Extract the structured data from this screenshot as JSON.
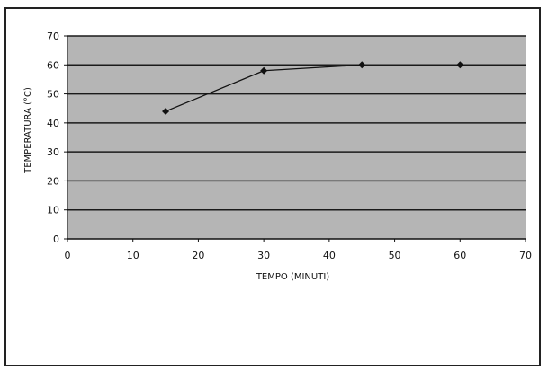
{
  "chart_data": {
    "type": "line",
    "xlabel": "TEMPO (MINUTI)",
    "ylabel": "TEMPERATURA (°C)",
    "x": [
      15,
      30,
      45,
      60
    ],
    "y": [
      44,
      58,
      60,
      60
    ],
    "line_segments": [
      [
        0,
        1
      ],
      [
        1,
        2
      ]
    ],
    "xlim": [
      0,
      70
    ],
    "ylim": [
      0,
      70
    ],
    "xticks": [
      0,
      10,
      20,
      30,
      40,
      50,
      60,
      70
    ],
    "yticks": [
      0,
      10,
      20,
      30,
      40,
      50,
      60,
      70
    ],
    "grid": "horizontal",
    "legend": "none",
    "colors": {
      "plot_background": "#b5b5b5",
      "gridline": "#1a1a1a",
      "series": "#111111"
    }
  }
}
